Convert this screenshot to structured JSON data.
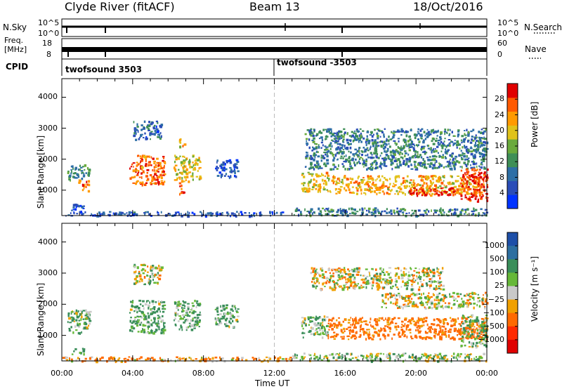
{
  "header": {
    "station": "Clyde River (fitACF)",
    "beam": "Beam 13",
    "date": "18/Oct/2016"
  },
  "strips": {
    "nsky_label": "N.Sky",
    "nsky_ticks": [
      "10^5",
      "10^0"
    ],
    "nsearch_label": "N.Search",
    "nsearch_ticks": [
      "10^5",
      "10^0"
    ],
    "freq_label_1": "Freq.",
    "freq_label_2": "[MHz]",
    "freq_ticks": [
      "18",
      "8"
    ],
    "nave_label": "Nave",
    "nave_ticks": [
      "60",
      "0"
    ],
    "cpid_label": "CPID",
    "cpid_segments": [
      "twofsound 3503",
      "twofsound -3503"
    ]
  },
  "chart_data": [
    {
      "type": "heatmap",
      "name": "power-panel",
      "ylabel": "Slant Range [km]",
      "yticks": [
        1000,
        2000,
        3000,
        4000
      ],
      "ylim": [
        180,
        4600
      ],
      "xlim": [
        0,
        24
      ],
      "xticks_hours": [
        0,
        4,
        8,
        12,
        16,
        20,
        24
      ],
      "colorbar": {
        "label": "Power [dB]",
        "ticks": [
          "4",
          "8",
          "12",
          "16",
          "20",
          "24",
          "28"
        ],
        "range": [
          0,
          32
        ],
        "colors": [
          "#0033ff",
          "#2a4db8",
          "#2e6fa6",
          "#3f8f57",
          "#6aaa3c",
          "#e0c21a",
          "#ff9a00",
          "#ff5a00",
          "#e00000"
        ]
      },
      "echo_regions": [
        {
          "t": [
            0.3,
            1.6
          ],
          "r": [
            1350,
            1850
          ],
          "level": 12
        },
        {
          "t": [
            0.9,
            1.5
          ],
          "r": [
            1000,
            1350
          ],
          "level": 26
        },
        {
          "t": [
            0.5,
            1.2
          ],
          "r": [
            300,
            600
          ],
          "level": 6
        },
        {
          "t": [
            3.8,
            5.8
          ],
          "r": [
            1200,
            2150
          ],
          "level": 26
        },
        {
          "t": [
            4.0,
            5.6
          ],
          "r": [
            2650,
            3250
          ],
          "level": 8
        },
        {
          "t": [
            6.3,
            7.8
          ],
          "r": [
            1300,
            2150
          ],
          "level": 20
        },
        {
          "t": [
            6.6,
            6.9
          ],
          "r": [
            900,
            1300
          ],
          "level": 28
        },
        {
          "t": [
            6.6,
            6.9
          ],
          "r": [
            2400,
            2700
          ],
          "level": 22
        },
        {
          "t": [
            8.6,
            9.9
          ],
          "r": [
            1400,
            2000
          ],
          "level": 6
        },
        {
          "t": [
            13.5,
            15.0
          ],
          "r": [
            950,
            1600
          ],
          "level": 20
        },
        {
          "t": [
            13.7,
            24.0
          ],
          "r": [
            1700,
            3000
          ],
          "level": 10
        },
        {
          "t": [
            15.0,
            23.8
          ],
          "r": [
            900,
            1500
          ],
          "level": 22
        },
        {
          "t": [
            19.5,
            22.3
          ],
          "r": [
            850,
            1100
          ],
          "level": 29
        },
        {
          "t": [
            22.5,
            24.0
          ],
          "r": [
            650,
            1750
          ],
          "level": 29
        },
        {
          "t": [
            13.0,
            24.0
          ],
          "r": [
            200,
            450
          ],
          "level": 10
        },
        {
          "t": [
            0.0,
            12.5
          ],
          "r": [
            190,
            330
          ],
          "level": 6
        }
      ]
    },
    {
      "type": "heatmap",
      "name": "velocity-panel",
      "xlabel": "Time UT",
      "ylabel": "Slant Range [km]",
      "yticks": [
        1000,
        2000,
        3000,
        4000
      ],
      "ylim": [
        180,
        4600
      ],
      "xlim": [
        0,
        24
      ],
      "xticks": [
        "00:00",
        "04:00",
        "08:00",
        "12:00",
        "16:00",
        "20:00",
        "00:00"
      ],
      "xticks_hours": [
        0,
        4,
        8,
        12,
        16,
        20,
        24
      ],
      "colorbar": {
        "label": "Velocity [m s⁻¹]",
        "ticks": [
          "1000",
          "500",
          "100",
          "25",
          "−25",
          "−100",
          "−500",
          "−1000"
        ],
        "colors": [
          "#1e4fa8",
          "#2e6fa0",
          "#3a8e5a",
          "#66b838",
          "#c9c9c9",
          "#f0a000",
          "#ff6a00",
          "#ff2a00",
          "#e00000"
        ]
      },
      "echo_regions": [
        {
          "t": [
            0.3,
            1.6
          ],
          "r": [
            1100,
            1850
          ],
          "level": 100
        },
        {
          "t": [
            0.5,
            1.3
          ],
          "r": [
            400,
            600
          ],
          "level": 150
        },
        {
          "t": [
            3.8,
            5.8
          ],
          "r": [
            1100,
            2150
          ],
          "level": 120
        },
        {
          "t": [
            4.0,
            5.6
          ],
          "r": [
            2650,
            3300
          ],
          "level": 0
        },
        {
          "t": [
            6.3,
            7.8
          ],
          "r": [
            1200,
            2150
          ],
          "level": 120
        },
        {
          "t": [
            8.6,
            9.9
          ],
          "r": [
            1300,
            2000
          ],
          "level": 120
        },
        {
          "t": [
            13.5,
            15.0
          ],
          "r": [
            950,
            1650
          ],
          "level": 100
        },
        {
          "t": [
            15.0,
            24.0
          ],
          "r": [
            900,
            1600
          ],
          "level": -200
        },
        {
          "t": [
            18.0,
            24.0
          ],
          "r": [
            1900,
            2400
          ],
          "level": 0
        },
        {
          "t": [
            14.0,
            21.5
          ],
          "r": [
            2500,
            3200
          ],
          "level": 0
        },
        {
          "t": [
            22.5,
            24.0
          ],
          "r": [
            650,
            1700
          ],
          "level": 100
        },
        {
          "t": [
            0.0,
            13.0
          ],
          "r": [
            190,
            330
          ],
          "level": -100
        },
        {
          "t": [
            13.0,
            24.0
          ],
          "r": [
            200,
            450
          ],
          "level": 60
        }
      ]
    }
  ]
}
